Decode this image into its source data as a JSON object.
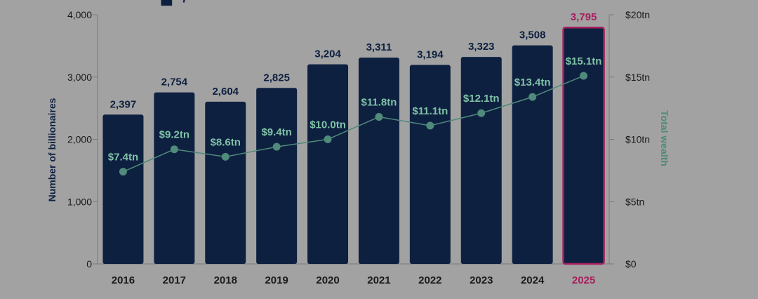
{
  "chart_data": {
    "type": "bar",
    "categories": [
      "2016",
      "2017",
      "2018",
      "2019",
      "2020",
      "2021",
      "2022",
      "2023",
      "2024",
      "2025"
    ],
    "series": [
      {
        "name": "Number of billionaires",
        "axis": "left",
        "kind": "bar",
        "values": [
          2397,
          2754,
          2604,
          2825,
          3204,
          3311,
          3194,
          3323,
          3508,
          3795
        ],
        "labels": [
          "2,397",
          "2,754",
          "2,604",
          "2,825",
          "3,204",
          "3,311",
          "3,194",
          "3,323",
          "3,508",
          "3,795"
        ]
      },
      {
        "name": "Total wealth",
        "axis": "right",
        "kind": "line",
        "values": [
          7.4,
          9.2,
          8.6,
          9.4,
          10.0,
          11.8,
          11.1,
          12.1,
          13.4,
          15.1
        ],
        "labels": [
          "$7.4tn",
          "$9.2tn",
          "$8.6tn",
          "$9.4tn",
          "$10.0tn",
          "$11.8tn",
          "$11.1tn",
          "$12.1tn",
          "$13.4tn",
          "$15.1tn"
        ]
      }
    ],
    "highlight_category": "2025",
    "ylabel": "Number of billionaires",
    "y2label": "Total wealth",
    "ylim": [
      0,
      4000
    ],
    "y2lim": [
      0,
      20
    ],
    "yticks": [
      {
        "value": 0,
        "label": "0"
      },
      {
        "value": 1000,
        "label": "1,000"
      },
      {
        "value": 2000,
        "label": "2,000"
      },
      {
        "value": 3000,
        "label": "3,000"
      },
      {
        "value": 4000,
        "label": "4,000"
      }
    ],
    "y2ticks": [
      {
        "value": 0,
        "label": "$0"
      },
      {
        "value": 5,
        "label": "$5tn"
      },
      {
        "value": 10,
        "label": "$10tn"
      },
      {
        "value": 15,
        "label": "$15tn"
      },
      {
        "value": 20,
        "label": "$20tn"
      }
    ],
    "grid": false,
    "colors": {
      "background": "#a2a2a2",
      "bar": "#0e2040",
      "highlight": "#a81e5e",
      "line": "#4f8a7a",
      "line_label": "#7fc2a6",
      "axis_text": "#0e2040",
      "tick_text": "#1a1a1a",
      "axis_line": "#7a7a7a"
    }
  }
}
